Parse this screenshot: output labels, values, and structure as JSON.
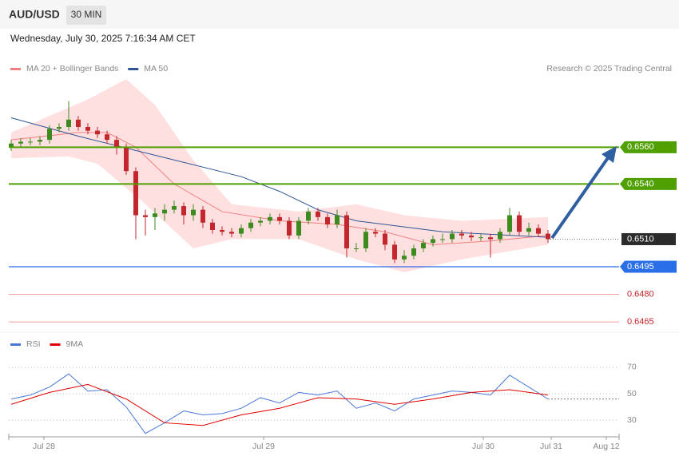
{
  "header": {
    "symbol": "AUD/USD",
    "interval": "30 MIN",
    "timestamp": "Wednesday, July 30, 2025 7:16:34 AM CET",
    "credit": "Research © 2025 Trading Central"
  },
  "chart_data": [
    {
      "type": "candlestick",
      "legend": [
        {
          "name": "MA 20 + Bollinger Bands",
          "color": "#f08080"
        },
        {
          "name": "MA 50",
          "color": "#2f5596"
        }
      ],
      "ylim": [
        0.6462,
        0.6614
      ],
      "up_color": "#3d8b1f",
      "down_color": "#c3262c",
      "candles": {
        "open": [
          0.656,
          0.6562,
          0.6563,
          0.6563,
          0.6564,
          0.657,
          0.6571,
          0.6575,
          0.6571,
          0.6569,
          0.6567,
          0.6564,
          0.656,
          0.6547,
          0.6523,
          0.6522,
          0.6524,
          0.6526,
          0.6528,
          0.6523,
          0.6526,
          0.6519,
          0.6515,
          0.6514,
          0.6513,
          0.6516,
          0.6519,
          0.652,
          0.6522,
          0.652,
          0.6512,
          0.652,
          0.6525,
          0.6522,
          0.6518,
          0.6523,
          0.6505,
          0.6505,
          0.6514,
          0.6513,
          0.6507,
          0.6499,
          0.6501,
          0.6505,
          0.6508,
          0.651,
          0.651,
          0.6513,
          0.6512,
          0.6511,
          0.6511,
          0.651,
          0.6514,
          0.6523,
          0.6514,
          0.6516,
          0.6513
        ],
        "high": [
          0.6564,
          0.6565,
          0.6565,
          0.6566,
          0.6572,
          0.6573,
          0.6585,
          0.6577,
          0.6573,
          0.6571,
          0.6569,
          0.6566,
          0.6562,
          0.6549,
          0.6526,
          0.6527,
          0.6529,
          0.6531,
          0.653,
          0.6529,
          0.6528,
          0.6521,
          0.6517,
          0.6516,
          0.6518,
          0.6521,
          0.6522,
          0.6524,
          0.6524,
          0.6522,
          0.6522,
          0.6527,
          0.6527,
          0.6524,
          0.6526,
          0.6525,
          0.6508,
          0.6516,
          0.6516,
          0.6515,
          0.6509,
          0.6504,
          0.6507,
          0.651,
          0.6512,
          0.6513,
          0.6515,
          0.6515,
          0.6514,
          0.6513,
          0.6513,
          0.6516,
          0.6527,
          0.6525,
          0.6519,
          0.6518,
          0.6515
        ],
        "low": [
          0.6558,
          0.656,
          0.6561,
          0.6561,
          0.6562,
          0.6568,
          0.6569,
          0.6569,
          0.6567,
          0.6565,
          0.6562,
          0.6556,
          0.6545,
          0.651,
          0.6512,
          0.6515,
          0.652,
          0.6524,
          0.6518,
          0.652,
          0.6516,
          0.6513,
          0.6512,
          0.6511,
          0.6511,
          0.6514,
          0.6517,
          0.6518,
          0.6518,
          0.651,
          0.651,
          0.6518,
          0.652,
          0.6516,
          0.6516,
          0.65,
          0.6503,
          0.6503,
          0.6511,
          0.6504,
          0.6497,
          0.6497,
          0.6499,
          0.6503,
          0.6506,
          0.6508,
          0.6508,
          0.651,
          0.6509,
          0.6509,
          0.65,
          0.6508,
          0.6512,
          0.6512,
          0.6512,
          0.6511,
          0.6508
        ],
        "close": [
          0.6562,
          0.6563,
          0.6563,
          0.6564,
          0.657,
          0.6571,
          0.6575,
          0.6571,
          0.6569,
          0.6567,
          0.6564,
          0.656,
          0.6547,
          0.6523,
          0.6522,
          0.6524,
          0.6526,
          0.6528,
          0.6523,
          0.6526,
          0.6519,
          0.6515,
          0.6514,
          0.6513,
          0.6516,
          0.6519,
          0.652,
          0.6522,
          0.652,
          0.6512,
          0.652,
          0.6525,
          0.6522,
          0.6518,
          0.6523,
          0.6505,
          0.6505,
          0.6514,
          0.6513,
          0.6507,
          0.6499,
          0.6501,
          0.6505,
          0.6508,
          0.651,
          0.651,
          0.6513,
          0.6512,
          0.6511,
          0.6511,
          0.651,
          0.6514,
          0.6523,
          0.6514,
          0.6516,
          0.6513,
          0.651
        ]
      },
      "ma50": {
        "x": [
          0,
          7,
          15.5,
          24,
          28,
          32,
          36,
          45,
          56
        ],
        "values": [
          0.6576,
          0.6566,
          0.6555,
          0.6544,
          0.6536,
          0.6526,
          0.652,
          0.6514,
          0.6511
        ]
      },
      "ma20": {
        "x": [
          0,
          7,
          10,
          13,
          17,
          22,
          28,
          34,
          39,
          44,
          50,
          56
        ],
        "values": [
          0.6564,
          0.6568,
          0.6568,
          0.656,
          0.654,
          0.6525,
          0.652,
          0.6518,
          0.6514,
          0.6507,
          0.6509,
          0.6512
        ]
      },
      "bb_upper": {
        "x": [
          0,
          8,
          12,
          15,
          19,
          23,
          30,
          36,
          41,
          47,
          56
        ],
        "values": [
          0.6568,
          0.6586,
          0.6597,
          0.6583,
          0.6553,
          0.6529,
          0.6525,
          0.6529,
          0.6523,
          0.652,
          0.6522
        ]
      },
      "bb_lower": {
        "x": [
          0,
          6,
          9,
          14,
          19,
          23,
          30,
          36,
          41,
          47,
          56
        ],
        "values": [
          0.6554,
          0.6555,
          0.6551,
          0.6529,
          0.6505,
          0.651,
          0.651,
          0.6499,
          0.6492,
          0.6499,
          0.6507
        ]
      },
      "levels": [
        {
          "value": 0.656,
          "label": "0.6560",
          "color": "#4fa000",
          "style": "box"
        },
        {
          "value": 0.654,
          "label": "0.6540",
          "color": "#4fa000",
          "style": "box"
        },
        {
          "value": 0.651,
          "label": "0.6510",
          "color": "#2b2b2b",
          "style": "current"
        },
        {
          "value": 0.6495,
          "label": "0.6495",
          "color": "#2a6ee8",
          "style": "box"
        },
        {
          "value": 0.648,
          "label": "0.6480",
          "color": "#c3262c",
          "style": "text"
        },
        {
          "value": 0.6465,
          "label": "0.6465",
          "color": "#c3262c",
          "style": "text"
        }
      ]
    },
    {
      "type": "line",
      "series": [
        {
          "name": "RSI",
          "color": "#4a78d6",
          "x": [
            0,
            2,
            4,
            6,
            8,
            10,
            12,
            14,
            16,
            18,
            20,
            22,
            24,
            26,
            28,
            30,
            32,
            34,
            36,
            38,
            40,
            42,
            44,
            46,
            48,
            50,
            52,
            54,
            56
          ],
          "values": [
            46,
            49,
            55,
            65,
            52,
            53,
            40,
            20,
            28,
            37,
            34,
            35,
            39,
            47,
            43,
            51,
            49,
            52,
            39,
            43,
            37,
            46,
            49,
            52,
            51,
            49,
            64,
            55,
            46
          ]
        },
        {
          "name": "9MA",
          "color": "#e00000",
          "x": [
            0,
            4,
            8,
            12,
            16,
            20,
            24,
            28,
            32,
            36,
            40,
            44,
            48,
            52,
            56
          ],
          "values": [
            42,
            51,
            57,
            46,
            28,
            26,
            34,
            39,
            47,
            46,
            42,
            46,
            51,
            53,
            49
          ]
        }
      ],
      "ylim": [
        18,
        82
      ],
      "yticks": [
        30,
        50,
        70
      ],
      "grid": true,
      "x_labels": [
        "Jul 28",
        "Jul 29",
        "Jul 30",
        "Jul 31",
        "Aug 12"
      ]
    }
  ]
}
